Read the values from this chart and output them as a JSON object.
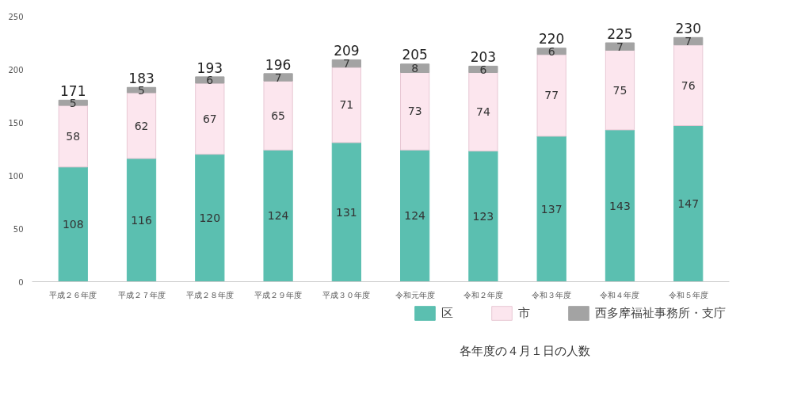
{
  "chart_data": {
    "type": "bar",
    "stacked": true,
    "categories": [
      "平成２６年度",
      "平成２７年度",
      "平成２８年度",
      "平成２９年度",
      "平成３０年度",
      "令和元年度",
      "令和２年度",
      "令和３年度",
      "令和４年度",
      "令和５年度"
    ],
    "series": [
      {
        "name": "区",
        "color": "#5bbfb0",
        "values": [
          108,
          116,
          120,
          124,
          131,
          124,
          123,
          137,
          143,
          147
        ]
      },
      {
        "name": "市",
        "color": "#fce6ee",
        "values": [
          58,
          62,
          67,
          65,
          71,
          73,
          74,
          77,
          75,
          76
        ]
      },
      {
        "name": "西多摩福祉事務所・支庁",
        "color": "#a3a3a3",
        "values": [
          5,
          5,
          6,
          7,
          7,
          8,
          6,
          6,
          7,
          7
        ]
      }
    ],
    "totals": [
      "171",
      "183",
      "193",
      "196",
      "209",
      "205",
      "203",
      "220",
      "225",
      "230"
    ],
    "data_labels": true,
    "ylim": [
      0,
      250
    ],
    "yticks": [
      0,
      50,
      100,
      150,
      200,
      250
    ],
    "grid": false,
    "legend": "bottom right",
    "annotations": [
      "各年度の４月１日の人数"
    ]
  }
}
